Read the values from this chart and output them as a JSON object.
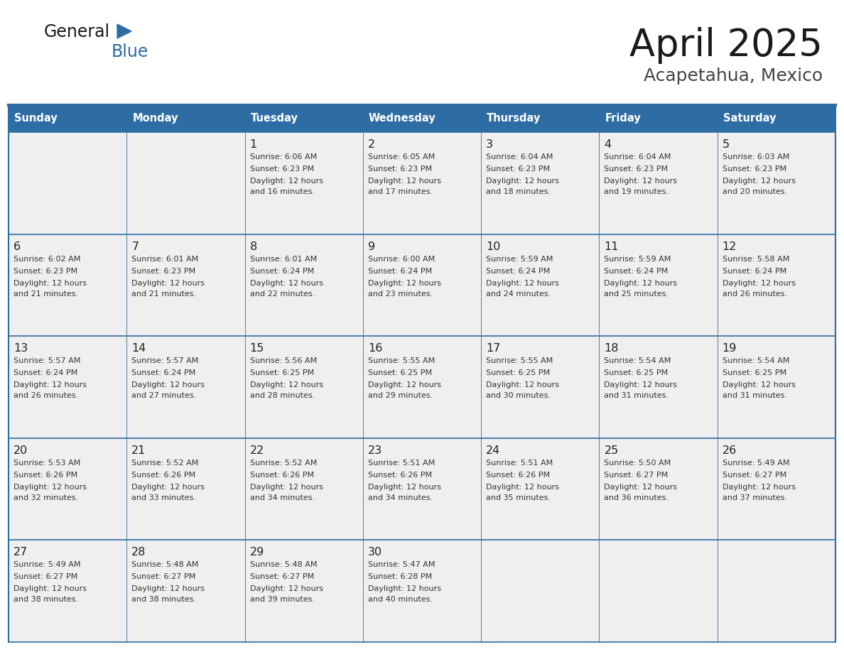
{
  "title": "April 2025",
  "subtitle": "Acapetahua, Mexico",
  "header_bg": "#2E6DA4",
  "header_text": "#FFFFFF",
  "cell_bg": "#EFEFEF",
  "border_color": "#2E6DA4",
  "text_color": "#333333",
  "day_num_color": "#222222",
  "day_names": [
    "Sunday",
    "Monday",
    "Tuesday",
    "Wednesday",
    "Thursday",
    "Friday",
    "Saturday"
  ],
  "days": [
    {
      "day": 1,
      "col": 2,
      "row": 0,
      "sunrise": "6:06 AM",
      "sunset": "6:23 PM",
      "dl_min": "16"
    },
    {
      "day": 2,
      "col": 3,
      "row": 0,
      "sunrise": "6:05 AM",
      "sunset": "6:23 PM",
      "dl_min": "17"
    },
    {
      "day": 3,
      "col": 4,
      "row": 0,
      "sunrise": "6:04 AM",
      "sunset": "6:23 PM",
      "dl_min": "18"
    },
    {
      "day": 4,
      "col": 5,
      "row": 0,
      "sunrise": "6:04 AM",
      "sunset": "6:23 PM",
      "dl_min": "19"
    },
    {
      "day": 5,
      "col": 6,
      "row": 0,
      "sunrise": "6:03 AM",
      "sunset": "6:23 PM",
      "dl_min": "20"
    },
    {
      "day": 6,
      "col": 0,
      "row": 1,
      "sunrise": "6:02 AM",
      "sunset": "6:23 PM",
      "dl_min": "21"
    },
    {
      "day": 7,
      "col": 1,
      "row": 1,
      "sunrise": "6:01 AM",
      "sunset": "6:23 PM",
      "dl_min": "21"
    },
    {
      "day": 8,
      "col": 2,
      "row": 1,
      "sunrise": "6:01 AM",
      "sunset": "6:24 PM",
      "dl_min": "22"
    },
    {
      "day": 9,
      "col": 3,
      "row": 1,
      "sunrise": "6:00 AM",
      "sunset": "6:24 PM",
      "dl_min": "23"
    },
    {
      "day": 10,
      "col": 4,
      "row": 1,
      "sunrise": "5:59 AM",
      "sunset": "6:24 PM",
      "dl_min": "24"
    },
    {
      "day": 11,
      "col": 5,
      "row": 1,
      "sunrise": "5:59 AM",
      "sunset": "6:24 PM",
      "dl_min": "25"
    },
    {
      "day": 12,
      "col": 6,
      "row": 1,
      "sunrise": "5:58 AM",
      "sunset": "6:24 PM",
      "dl_min": "26"
    },
    {
      "day": 13,
      "col": 0,
      "row": 2,
      "sunrise": "5:57 AM",
      "sunset": "6:24 PM",
      "dl_min": "26"
    },
    {
      "day": 14,
      "col": 1,
      "row": 2,
      "sunrise": "5:57 AM",
      "sunset": "6:24 PM",
      "dl_min": "27"
    },
    {
      "day": 15,
      "col": 2,
      "row": 2,
      "sunrise": "5:56 AM",
      "sunset": "6:25 PM",
      "dl_min": "28"
    },
    {
      "day": 16,
      "col": 3,
      "row": 2,
      "sunrise": "5:55 AM",
      "sunset": "6:25 PM",
      "dl_min": "29"
    },
    {
      "day": 17,
      "col": 4,
      "row": 2,
      "sunrise": "5:55 AM",
      "sunset": "6:25 PM",
      "dl_min": "30"
    },
    {
      "day": 18,
      "col": 5,
      "row": 2,
      "sunrise": "5:54 AM",
      "sunset": "6:25 PM",
      "dl_min": "31"
    },
    {
      "day": 19,
      "col": 6,
      "row": 2,
      "sunrise": "5:54 AM",
      "sunset": "6:25 PM",
      "dl_min": "31"
    },
    {
      "day": 20,
      "col": 0,
      "row": 3,
      "sunrise": "5:53 AM",
      "sunset": "6:26 PM",
      "dl_min": "32"
    },
    {
      "day": 21,
      "col": 1,
      "row": 3,
      "sunrise": "5:52 AM",
      "sunset": "6:26 PM",
      "dl_min": "33"
    },
    {
      "day": 22,
      "col": 2,
      "row": 3,
      "sunrise": "5:52 AM",
      "sunset": "6:26 PM",
      "dl_min": "34"
    },
    {
      "day": 23,
      "col": 3,
      "row": 3,
      "sunrise": "5:51 AM",
      "sunset": "6:26 PM",
      "dl_min": "34"
    },
    {
      "day": 24,
      "col": 4,
      "row": 3,
      "sunrise": "5:51 AM",
      "sunset": "6:26 PM",
      "dl_min": "35"
    },
    {
      "day": 25,
      "col": 5,
      "row": 3,
      "sunrise": "5:50 AM",
      "sunset": "6:27 PM",
      "dl_min": "36"
    },
    {
      "day": 26,
      "col": 6,
      "row": 3,
      "sunrise": "5:49 AM",
      "sunset": "6:27 PM",
      "dl_min": "37"
    },
    {
      "day": 27,
      "col": 0,
      "row": 4,
      "sunrise": "5:49 AM",
      "sunset": "6:27 PM",
      "dl_min": "38"
    },
    {
      "day": 28,
      "col": 1,
      "row": 4,
      "sunrise": "5:48 AM",
      "sunset": "6:27 PM",
      "dl_min": "38"
    },
    {
      "day": 29,
      "col": 2,
      "row": 4,
      "sunrise": "5:48 AM",
      "sunset": "6:27 PM",
      "dl_min": "39"
    },
    {
      "day": 30,
      "col": 3,
      "row": 4,
      "sunrise": "5:47 AM",
      "sunset": "6:28 PM",
      "dl_min": "40"
    }
  ],
  "logo_general_color": "#1a1a1a",
  "logo_blue_color": "#2E6DA4",
  "num_rows": 5,
  "fig_width": 11.88,
  "fig_height": 9.18,
  "dpi": 100
}
